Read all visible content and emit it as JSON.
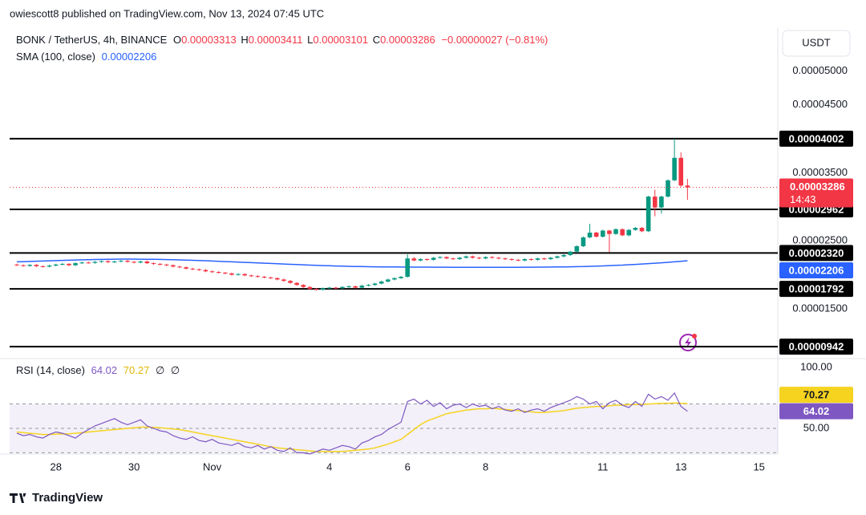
{
  "chart_data": {
    "type": "candlestick",
    "attribution": "owiescott8 published on TradingView.com, Nov 13, 2024 07:45 UTC",
    "symbol": "BONK / TetherUS, 4h, BINANCE",
    "ohlc_letters": [
      "O",
      "H",
      "L",
      "C"
    ],
    "change": "−0.00000027 (−0.81%)",
    "sma_label": "SMA (100, close)",
    "rsi_label": "RSI (14, close)",
    "rsi_extra": [
      "∅",
      "∅"
    ],
    "currency": "USDT",
    "countdown": "14:43",
    "brand": "TradingView",
    "up_color": "#089981",
    "down_color": "#f23645",
    "sma_color": "#2962ff",
    "rsi_color": "#7e57c2",
    "rsi_ma_color": "#f5d31f",
    "level_color": "#000000",
    "ylim": [
      7.9e-06,
      5.63e-05
    ],
    "yticks": [
      {
        "value": 5e-05,
        "label": "0.00005000"
      },
      {
        "value": 4.5e-05,
        "label": "0.00004500"
      },
      {
        "value": 3.5e-05,
        "label": "0.00003500"
      },
      {
        "value": 2.5e-05,
        "label": "0.00002500"
      },
      {
        "value": 1.5e-05,
        "label": "0.00001500"
      }
    ],
    "levels": [
      4.002e-05,
      2.962e-05,
      {
        "value": 2.32e-05,
        "label": "0.00002320"
      },
      1.792e-05,
      9.42e-06
    ],
    "grid": false,
    "categories": [
      null,
      null,
      null,
      null,
      null,
      null,
      "28",
      null,
      null,
      null,
      null,
      null,
      null,
      null,
      null,
      null,
      null,
      null,
      "30",
      null,
      null,
      null,
      null,
      null,
      null,
      null,
      null,
      null,
      null,
      null,
      "Nov",
      null,
      null,
      null,
      null,
      null,
      null,
      null,
      null,
      null,
      null,
      null,
      null,
      null,
      null,
      null,
      null,
      null,
      "4",
      null,
      null,
      null,
      null,
      null,
      null,
      null,
      null,
      null,
      null,
      null,
      "6",
      null,
      null,
      null,
      null,
      null,
      null,
      null,
      null,
      null,
      null,
      null,
      "8",
      null,
      null,
      null,
      null,
      null,
      null,
      null,
      null,
      null,
      null,
      null,
      null,
      null,
      null,
      null,
      null,
      null,
      "11",
      null,
      null,
      null,
      null,
      null,
      null,
      null,
      null,
      null,
      null,
      null,
      "13",
      null
    ],
    "future_label": "15",
    "ohlc": [
      [
        2.15e-05,
        2.162e-05,
        2.128e-05,
        2.14e-05
      ],
      [
        2.14e-05,
        2.152e-05,
        2.118e-05,
        2.13e-05
      ],
      [
        2.13e-05,
        2.157e-05,
        2.118e-05,
        2.145e-05
      ],
      [
        2.145e-05,
        2.157e-05,
        2.113e-05,
        2.125e-05
      ],
      [
        2.125e-05,
        2.137e-05,
        2.108e-05,
        2.12e-05
      ],
      [
        2.12e-05,
        2.147e-05,
        2.108e-05,
        2.135e-05
      ],
      [
        2.135e-05,
        2.162e-05,
        2.123e-05,
        2.15e-05
      ],
      [
        2.15e-05,
        2.172e-05,
        2.138e-05,
        2.16e-05
      ],
      [
        2.16e-05,
        2.172e-05,
        2.128e-05,
        2.14e-05
      ],
      [
        2.14e-05,
        2.182e-05,
        2.128e-05,
        2.17e-05
      ],
      [
        2.17e-05,
        2.192e-05,
        2.158e-05,
        2.18e-05
      ],
      [
        2.18e-05,
        2.192e-05,
        2.163e-05,
        2.175e-05
      ],
      [
        2.175e-05,
        2.202e-05,
        2.163e-05,
        2.19e-05
      ],
      [
        2.19e-05,
        2.212e-05,
        2.178e-05,
        2.2e-05
      ],
      [
        2.2e-05,
        2.212e-05,
        2.173e-05,
        2.185e-05
      ],
      [
        2.185e-05,
        2.207e-05,
        2.173e-05,
        2.195e-05
      ],
      [
        2.195e-05,
        2.217e-05,
        2.183e-05,
        2.205e-05
      ],
      [
        2.205e-05,
        2.217e-05,
        2.178e-05,
        2.19e-05
      ],
      [
        2.19e-05,
        2.202e-05,
        2.168e-05,
        2.18e-05
      ],
      [
        2.18e-05,
        2.207e-05,
        2.168e-05,
        2.195e-05
      ],
      [
        2.195e-05,
        2.207e-05,
        2.158e-05,
        2.17e-05
      ],
      [
        2.17e-05,
        2.182e-05,
        2.148e-05,
        2.16e-05
      ],
      [
        2.16e-05,
        2.172e-05,
        2.138e-05,
        2.15e-05
      ],
      [
        2.15e-05,
        2.162e-05,
        2.128e-05,
        2.14e-05
      ],
      [
        2.14e-05,
        2.152e-05,
        2.108e-05,
        2.12e-05
      ],
      [
        2.12e-05,
        2.132e-05,
        2.098e-05,
        2.11e-05
      ],
      [
        2.11e-05,
        2.122e-05,
        2.078e-05,
        2.09e-05
      ],
      [
        2.09e-05,
        2.102e-05,
        2.068e-05,
        2.08e-05
      ],
      [
        2.08e-05,
        2.092e-05,
        2.058e-05,
        2.07e-05
      ],
      [
        2.07e-05,
        2.082e-05,
        2.038e-05,
        2.05e-05
      ],
      [
        2.05e-05,
        2.062e-05,
        2.028e-05,
        2.04e-05
      ],
      [
        2.04e-05,
        2.052e-05,
        2.018e-05,
        2.03e-05
      ],
      [
        2.03e-05,
        2.042e-05,
        2.008e-05,
        2.02e-05
      ],
      [
        2.02e-05,
        2.032e-05,
        1.988e-05,
        2e-05
      ],
      [
        2e-05,
        2.022e-05,
        1.988e-05,
        2.01e-05
      ],
      [
        2.01e-05,
        2.022e-05,
        1.978e-05,
        1.99e-05
      ],
      [
        1.99e-05,
        2.002e-05,
        1.968e-05,
        1.98e-05
      ],
      [
        1.98e-05,
        1.992e-05,
        1.958e-05,
        1.97e-05
      ],
      [
        1.97e-05,
        1.982e-05,
        1.948e-05,
        1.96e-05
      ],
      [
        1.96e-05,
        1.972e-05,
        1.938e-05,
        1.95e-05
      ],
      [
        1.95e-05,
        1.962e-05,
        1.918e-05,
        1.93e-05
      ],
      [
        1.93e-05,
        1.942e-05,
        1.898e-05,
        1.91e-05
      ],
      [
        1.91e-05,
        1.922e-05,
        1.868e-05,
        1.88e-05
      ],
      [
        1.88e-05,
        1.892e-05,
        1.838e-05,
        1.85e-05
      ],
      [
        1.85e-05,
        1.862e-05,
        1.808e-05,
        1.82e-05
      ],
      [
        1.82e-05,
        1.832e-05,
        1.778e-05,
        1.79e-05
      ],
      [
        1.79e-05,
        1.802e-05,
        1.768e-05,
        1.78e-05
      ],
      [
        1.78e-05,
        1.812e-05,
        1.768e-05,
        1.8e-05
      ],
      [
        1.8e-05,
        1.822e-05,
        1.788e-05,
        1.81e-05
      ],
      [
        1.81e-05,
        1.822e-05,
        1.788e-05,
        1.8e-05
      ],
      [
        1.8e-05,
        1.832e-05,
        1.788e-05,
        1.82e-05
      ],
      [
        1.82e-05,
        1.842e-05,
        1.808e-05,
        1.83e-05
      ],
      [
        1.83e-05,
        1.842e-05,
        1.798e-05,
        1.81e-05
      ],
      [
        1.81e-05,
        1.852e-05,
        1.798e-05,
        1.84e-05
      ],
      [
        1.84e-05,
        1.862e-05,
        1.828e-05,
        1.85e-05
      ],
      [
        1.85e-05,
        1.882e-05,
        1.838e-05,
        1.87e-05
      ],
      [
        1.87e-05,
        1.912e-05,
        1.858e-05,
        1.9e-05
      ],
      [
        1.9e-05,
        1.942e-05,
        1.888e-05,
        1.93e-05
      ],
      [
        1.93e-05,
        1.962e-05,
        1.918e-05,
        1.95e-05
      ],
      [
        1.95e-05,
        1.982e-05,
        1.938e-05,
        1.97e-05
      ],
      [
        1.97e-05,
        2.3e-05,
        1.958e-05,
        2.24e-05
      ],
      [
        2.24e-05,
        2.26e-05,
        2.198e-05,
        2.21e-05
      ],
      [
        2.21e-05,
        2.242e-05,
        2.198e-05,
        2.23e-05
      ],
      [
        2.23e-05,
        2.242e-05,
        2.208e-05,
        2.22e-05
      ],
      [
        2.22e-05,
        2.262e-05,
        2.208e-05,
        2.25e-05
      ],
      [
        2.25e-05,
        2.272e-05,
        2.238e-05,
        2.26e-05
      ],
      [
        2.26e-05,
        2.272e-05,
        2.228e-05,
        2.24e-05
      ],
      [
        2.24e-05,
        2.252e-05,
        2.218e-05,
        2.23e-05
      ],
      [
        2.23e-05,
        2.262e-05,
        2.218e-05,
        2.25e-05
      ],
      [
        2.25e-05,
        2.282e-05,
        2.238e-05,
        2.27e-05
      ],
      [
        2.27e-05,
        2.282e-05,
        2.238e-05,
        2.25e-05
      ],
      [
        2.25e-05,
        2.262e-05,
        2.228e-05,
        2.24e-05
      ],
      [
        2.24e-05,
        2.272e-05,
        2.228e-05,
        2.26e-05
      ],
      [
        2.26e-05,
        2.272e-05,
        2.238e-05,
        2.25e-05
      ],
      [
        2.25e-05,
        2.262e-05,
        2.228e-05,
        2.24e-05
      ],
      [
        2.24e-05,
        2.252e-05,
        2.218e-05,
        2.23e-05
      ],
      [
        2.23e-05,
        2.242e-05,
        2.208e-05,
        2.22e-05
      ],
      [
        2.22e-05,
        2.232e-05,
        2.198e-05,
        2.21e-05
      ],
      [
        2.21e-05,
        2.242e-05,
        2.198e-05,
        2.23e-05
      ],
      [
        2.23e-05,
        2.242e-05,
        2.208e-05,
        2.22e-05
      ],
      [
        2.22e-05,
        2.252e-05,
        2.208e-05,
        2.24e-05
      ],
      [
        2.24e-05,
        2.252e-05,
        2.218e-05,
        2.23e-05
      ],
      [
        2.23e-05,
        2.262e-05,
        2.218e-05,
        2.25e-05
      ],
      [
        2.25e-05,
        2.282e-05,
        2.238e-05,
        2.27e-05
      ],
      [
        2.27e-05,
        2.302e-05,
        2.258e-05,
        2.29e-05
      ],
      [
        2.29e-05,
        2.352e-05,
        2.278e-05,
        2.34e-05
      ],
      [
        2.34e-05,
        2.432e-05,
        2.328e-05,
        2.42e-05
      ],
      [
        2.42e-05,
        2.562e-05,
        2.408e-05,
        2.55e-05
      ],
      [
        2.55e-05,
        2.75e-05,
        2.538e-05,
        2.62e-05
      ],
      [
        2.62e-05,
        2.632e-05,
        2.548e-05,
        2.56e-05
      ],
      [
        2.56e-05,
        2.662e-05,
        2.548e-05,
        2.65e-05
      ],
      [
        2.65e-05,
        2.662e-05,
        2.33e-05,
        2.6e-05
      ],
      [
        2.6e-05,
        2.682e-05,
        2.588e-05,
        2.67e-05
      ],
      [
        2.67e-05,
        2.682e-05,
        2.568e-05,
        2.58e-05
      ],
      [
        2.58e-05,
        2.672e-05,
        2.568e-05,
        2.66e-05
      ],
      [
        2.66e-05,
        2.702e-05,
        2.648e-05,
        2.69e-05
      ],
      [
        2.69e-05,
        2.702e-05,
        2.628e-05,
        2.64e-05
      ],
      [
        2.64e-05,
        3.162e-05,
        2.628e-05,
        3.15e-05
      ],
      [
        3.15e-05,
        3.25e-05,
        2.86e-05,
        2.99e-05
      ],
      [
        2.99e-05,
        3.162e-05,
        2.9e-05,
        3.15e-05
      ],
      [
        3.15e-05,
        3.402e-05,
        3.138e-05,
        3.39e-05
      ],
      [
        3.39e-05,
        4.002e-05,
        3.378e-05,
        3.72e-05
      ],
      [
        3.72e-05,
        3.8e-05,
        3.29e-05,
        3.313e-05
      ],
      [
        3.313e-05,
        3.411e-05,
        3.101e-05,
        3.286e-05
      ]
    ],
    "sma": [
      2.19e-05,
      2.193e-05,
      2.196e-05,
      2.199e-05,
      2.202e-05,
      2.205e-05,
      2.208e-05,
      2.211e-05,
      2.214e-05,
      2.217e-05,
      2.22e-05,
      2.222e-05,
      2.224e-05,
      2.226e-05,
      2.228e-05,
      2.229e-05,
      2.23e-05,
      2.23e-05,
      2.23e-05,
      2.229e-05,
      2.228e-05,
      2.227e-05,
      2.225e-05,
      2.223e-05,
      2.221e-05,
      2.218e-05,
      2.215e-05,
      2.212e-05,
      2.209e-05,
      2.206e-05,
      2.202e-05,
      2.198e-05,
      2.194e-05,
      2.19e-05,
      2.186e-05,
      2.182e-05,
      2.178e-05,
      2.174e-05,
      2.17e-05,
      2.166e-05,
      2.162e-05,
      2.158e-05,
      2.154e-05,
      2.15e-05,
      2.146e-05,
      2.142e-05,
      2.138e-05,
      2.135e-05,
      2.132e-05,
      2.129e-05,
      2.126e-05,
      2.124e-05,
      2.122e-05,
      2.12e-05,
      2.118e-05,
      2.117e-05,
      2.116e-05,
      2.115e-05,
      2.114e-05,
      2.113e-05,
      2.113e-05,
      2.112e-05,
      2.112e-05,
      2.112e-05,
      2.111e-05,
      2.111e-05,
      2.111e-05,
      2.11e-05,
      2.11e-05,
      2.11e-05,
      2.11e-05,
      2.11e-05,
      2.11e-05,
      2.11e-05,
      2.11e-05,
      2.11e-05,
      2.11e-05,
      2.11e-05,
      2.111e-05,
      2.111e-05,
      2.112e-05,
      2.112e-05,
      2.113e-05,
      2.114e-05,
      2.115e-05,
      2.117e-05,
      2.119e-05,
      2.121e-05,
      2.124e-05,
      2.127e-05,
      2.13e-05,
      2.134e-05,
      2.138e-05,
      2.142e-05,
      2.147e-05,
      2.152e-05,
      2.158e-05,
      2.164e-05,
      2.17e-05,
      2.176e-05,
      2.183e-05,
      2.19e-05,
      2.198e-05,
      2.206e-05
    ],
    "rsi_ylim": [
      29.6,
      103.9
    ],
    "rsi_yticks": [
      {
        "value": 100,
        "label": "100.00"
      },
      {
        "value": 50,
        "label": "50.00"
      }
    ],
    "rsi_bands": [
      30,
      50,
      70
    ],
    "rsi": [
      46,
      44,
      45,
      43,
      42,
      45,
      47,
      46,
      44,
      42,
      46,
      49,
      52,
      54,
      56,
      58,
      55,
      53,
      55,
      57,
      52,
      50,
      48,
      47,
      44,
      42,
      41,
      43,
      40,
      39,
      41,
      38,
      37,
      36,
      38,
      35,
      34,
      36,
      33,
      35,
      32,
      31,
      34,
      30,
      30,
      29,
      31,
      33,
      32,
      34,
      36,
      35,
      33,
      38,
      40,
      43,
      45,
      49,
      52,
      55,
      72,
      74,
      70,
      73,
      68,
      71,
      66,
      69,
      70,
      67,
      70,
      68,
      69,
      66,
      68,
      65,
      64,
      66,
      63,
      65,
      66,
      64,
      67,
      69,
      71,
      73,
      76,
      74,
      70,
      72,
      66,
      71,
      73,
      69,
      67,
      72,
      68,
      78,
      74,
      76,
      73,
      79,
      68,
      64.02
    ],
    "rsi_ma": [
      47,
      46.5,
      46,
      45.5,
      45,
      45,
      45.2,
      45.4,
      45.6,
      46,
      46.5,
      47,
      47.5,
      48,
      48.5,
      49,
      49.5,
      50,
      50.5,
      51,
      51,
      50.8,
      50.5,
      50,
      49.5,
      49,
      48,
      47,
      46,
      45,
      44,
      43,
      42,
      41,
      40,
      39,
      38,
      37,
      36,
      35,
      34,
      33.5,
      33,
      32.5,
      32,
      31.5,
      31,
      31,
      31,
      31,
      31.2,
      31.5,
      32,
      32.5,
      33,
      34,
      35.5,
      37,
      39,
      41,
      45,
      49,
      53,
      56,
      58,
      60,
      62,
      63,
      64,
      65,
      65.5,
      66,
      66,
      66.5,
      66,
      65.5,
      65,
      64.5,
      64,
      63.5,
      63,
      63,
      63.5,
      64,
      64.5,
      65.5,
      66.5,
      67,
      67.5,
      68,
      68,
      68.5,
      69,
      69,
      69.5,
      69.5,
      69.5,
      70,
      70.2,
      70.5,
      70.5,
      70.8,
      70.5,
      70.27
    ]
  }
}
